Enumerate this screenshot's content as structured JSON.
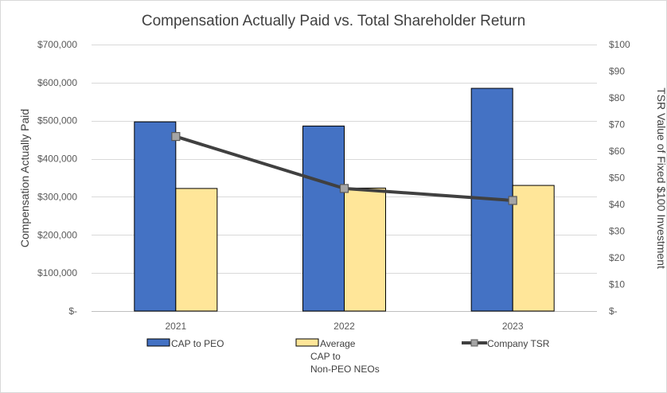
{
  "chart_data": {
    "type": "bar",
    "title": "Compensation Actually Paid vs. Total Shareholder Return",
    "categories": [
      "2021",
      "2022",
      "2023"
    ],
    "ylabel": "Compensation Actually Paid",
    "y2label": "TSR Value of Fixed $100 Investment",
    "ylim": [
      0,
      700000
    ],
    "y2lim": [
      0,
      100
    ],
    "yticks": [
      {
        "value": 0,
        "label": "$-"
      },
      {
        "value": 100000,
        "label": "$100,000"
      },
      {
        "value": 200000,
        "label": "$200,000"
      },
      {
        "value": 300000,
        "label": "$300,000"
      },
      {
        "value": 400000,
        "label": "$400,000"
      },
      {
        "value": 500000,
        "label": "$500,000"
      },
      {
        "value": 600000,
        "label": "$600,000"
      },
      {
        "value": 700000,
        "label": "$700,000"
      }
    ],
    "y2ticks": [
      {
        "value": 0,
        "label": "$-"
      },
      {
        "value": 10,
        "label": "$10"
      },
      {
        "value": 20,
        "label": "$20"
      },
      {
        "value": 30,
        "label": "$30"
      },
      {
        "value": 40,
        "label": "$40"
      },
      {
        "value": 50,
        "label": "$50"
      },
      {
        "value": 60,
        "label": "$60"
      },
      {
        "value": 70,
        "label": "$70"
      },
      {
        "value": 80,
        "label": "$80"
      },
      {
        "value": 90,
        "label": "$90"
      },
      {
        "value": 100,
        "label": "$100"
      }
    ],
    "series": [
      {
        "name": "CAP to PEO",
        "type": "bar",
        "axis": "left",
        "color": "#4472C4",
        "values": [
          497000,
          486000,
          585000
        ]
      },
      {
        "name": "Average CAP to Non-PEO NEOs",
        "type": "bar",
        "axis": "left",
        "color": "#FFE699",
        "values": [
          322000,
          323000,
          330000
        ]
      },
      {
        "name": "Company TSR",
        "type": "line",
        "axis": "right",
        "color": "#404040",
        "marker_color": "#A5A5A5",
        "values": [
          65.5,
          46,
          41.5
        ]
      }
    ],
    "legend": {
      "position": "bottom",
      "items": [
        {
          "series": "CAP to PEO",
          "lines": [
            "CAP to PEO"
          ]
        },
        {
          "series": "Average CAP to Non-PEO NEOs",
          "lines": [
            "Average",
            "CAP to",
            "Non-PEO NEOs"
          ]
        },
        {
          "series": "Company TSR",
          "lines": [
            "Company TSR"
          ]
        }
      ]
    },
    "grid": true
  }
}
